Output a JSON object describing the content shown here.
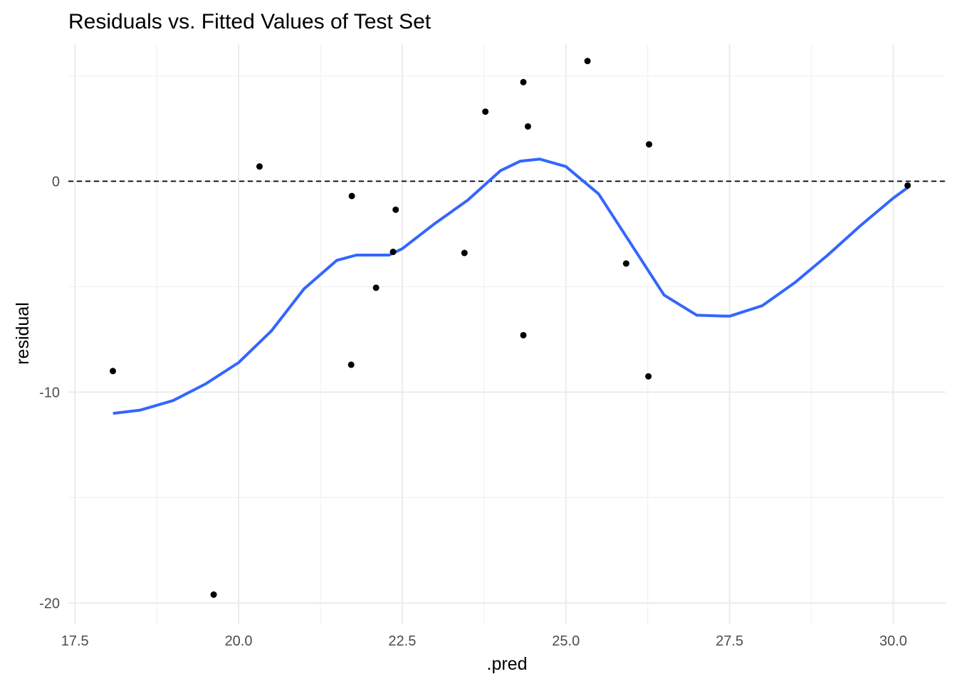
{
  "chart_data": {
    "type": "scatter",
    "title": "Residuals vs. Fitted Values of Test Set",
    "xlabel": ".pred",
    "ylabel": "residual",
    "xlim": [
      17.4,
      30.8
    ],
    "ylim": [
      -21.0,
      6.5
    ],
    "x_ticks": [
      17.5,
      20.0,
      22.5,
      25.0,
      27.5,
      30.0
    ],
    "x_tick_labels": [
      "17.5",
      "20.0",
      "22.5",
      "25.0",
      "27.5",
      "30.0"
    ],
    "y_ticks": [
      -20,
      -10,
      0
    ],
    "y_tick_labels": [
      "-20",
      "-10",
      "0"
    ],
    "grid": true,
    "reference_line": {
      "y": 0,
      "style": "dashed",
      "color": "#000000"
    },
    "point_color": "#000000",
    "smooth_color": "#3366FF",
    "points": [
      {
        "x": 18.08,
        "y": -9.0
      },
      {
        "x": 19.62,
        "y": -19.6
      },
      {
        "x": 20.32,
        "y": 0.7
      },
      {
        "x": 21.73,
        "y": -0.7
      },
      {
        "x": 21.72,
        "y": -8.7
      },
      {
        "x": 22.1,
        "y": -5.05
      },
      {
        "x": 22.36,
        "y": -3.35
      },
      {
        "x": 22.4,
        "y": -1.35
      },
      {
        "x": 23.45,
        "y": -3.4
      },
      {
        "x": 23.77,
        "y": 3.3
      },
      {
        "x": 24.35,
        "y": 4.7
      },
      {
        "x": 24.42,
        "y": 2.6
      },
      {
        "x": 24.35,
        "y": -7.3
      },
      {
        "x": 25.33,
        "y": 5.7
      },
      {
        "x": 25.92,
        "y": -3.9
      },
      {
        "x": 26.27,
        "y": 1.75
      },
      {
        "x": 26.26,
        "y": -9.25
      },
      {
        "x": 30.22,
        "y": -0.2
      }
    ],
    "smooth": {
      "x": [
        18.1,
        18.5,
        19.0,
        19.5,
        20.0,
        20.5,
        21.0,
        21.5,
        21.8,
        22.0,
        22.3,
        22.5,
        23.0,
        23.5,
        24.0,
        24.3,
        24.6,
        25.0,
        25.5,
        26.0,
        26.5,
        27.0,
        27.5,
        28.0,
        28.5,
        29.0,
        29.5,
        30.0,
        30.22
      ],
      "y": [
        -11.0,
        -10.85,
        -10.4,
        -9.6,
        -8.6,
        -7.1,
        -5.1,
        -3.75,
        -3.5,
        -3.5,
        -3.5,
        -3.2,
        -2.0,
        -0.9,
        0.5,
        0.95,
        1.05,
        0.7,
        -0.6,
        -3.0,
        -5.4,
        -6.35,
        -6.4,
        -5.9,
        -4.8,
        -3.5,
        -2.1,
        -0.8,
        -0.3
      ]
    }
  }
}
